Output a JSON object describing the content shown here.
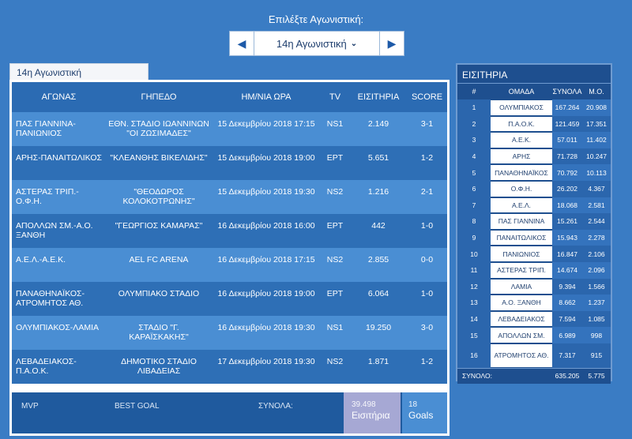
{
  "selector": {
    "label": "Επιλέξτε Αγωνιστική:",
    "value": "14η Αγωνιστική",
    "prev_icon": "◀",
    "next_icon": "▶"
  },
  "matches": {
    "tab_label": "14η Αγωνιστική",
    "headers": [
      "ΑΓΩΝΑΣ",
      "ΓΗΠΕΔΟ",
      "ΗΜ/ΝΙΑ ΩΡΑ",
      "TV",
      "ΕΙΣΙΤΗΡΙΑ",
      "SCORE"
    ],
    "rows": [
      {
        "match": "ΠΑΣ ΓΙΑΝΝΙΝΑ-ΠΑΝΙΩΝΙΟΣ",
        "stadium": "ΕΘΝ. ΣΤΑΔΙΟ ΙΩΑΝΝΙΝΩΝ \"ΟΙ ΖΩΣΙΜΑΔΕΣ\"",
        "date": "15 Δεκεμβρίου 2018 17:15",
        "tv": "NS1",
        "tickets": "2.149",
        "score": "3-1"
      },
      {
        "match": "ΑΡΗΣ-ΠΑΝΑΙΤΩΛΙΚΟΣ",
        "stadium": "\"ΚΛΕΑΝΘΗΣ ΒΙΚΕΛΙΔΗΣ\"",
        "date": "15 Δεκεμβρίου 2018 19:00",
        "tv": "ΕΡΤ",
        "tickets": "5.651",
        "score": "1-2"
      },
      {
        "match": "ΑΣΤΕΡΑΣ ΤΡΙΠ.-Ο.Φ.Η.",
        "stadium": "\"ΘΕΟΔΩΡΟΣ ΚΟΛΟΚΟΤΡΩΝΗΣ\"",
        "date": "15 Δεκεμβρίου 2018 19:30",
        "tv": "NS2",
        "tickets": "1.216",
        "score": "2-1"
      },
      {
        "match": "ΑΠΟΛΛΩΝ ΣΜ.-Α.Ο. ΞΑΝΘΗ",
        "stadium": "\"ΓΕΩΡΓΙΟΣ ΚΑΜΑΡΑΣ\"",
        "date": "16 Δεκεμβρίου 2018 16:00",
        "tv": "ΕΡΤ",
        "tickets": "442",
        "score": "1-0"
      },
      {
        "match": "Α.Ε.Λ.-Α.Ε.Κ.",
        "stadium": "AEL FC ARENA",
        "date": "16 Δεκεμβρίου 2018 17:15",
        "tv": "NS2",
        "tickets": "2.855",
        "score": "0-0"
      },
      {
        "match": "ΠΑΝΑΘΗΝΑΪΚΟΣ-ΑΤΡΟΜΗΤΟΣ ΑΘ.",
        "stadium": "ΟΛΥΜΠΙΑΚΟ ΣΤΑΔΙΟ",
        "date": "16 Δεκεμβρίου 2018 19:00",
        "tv": "ΕΡΤ",
        "tickets": "6.064",
        "score": "1-0"
      },
      {
        "match": "ΟΛΥΜΠΙΑΚΟΣ-ΛΑΜΙΑ",
        "stadium": "ΣΤΑΔΙΟ \"Γ. ΚΑΡΑΪΣΚΑΚΗΣ\"",
        "date": "16 Δεκεμβρίου 2018 19:30",
        "tv": "NS1",
        "tickets": "19.250",
        "score": "3-0"
      },
      {
        "match": "ΛΕΒΑΔΕΙΑΚΟΣ-Π.Α.Ο.Κ.",
        "stadium": "ΔΗΜΟΤΙΚΟ ΣΤΑΔΙΟ ΛΙΒΑΔΕΙΑΣ",
        "date": "17 Δεκεμβρίου 2018 19:30",
        "tv": "NS2",
        "tickets": "1.871",
        "score": "1-2"
      }
    ],
    "footer": {
      "mvp": "MVP",
      "best_goal": "BEST GOAL",
      "total_label": "ΣΥΝΟΛΑ:",
      "tickets_value": "39.498",
      "tickets_label": "Εισιτήρια",
      "goals_value": "18",
      "goals_label": "Goals"
    }
  },
  "tickets": {
    "title": "ΕΙΣΙΤΗΡΙΑ",
    "headers": [
      "#",
      "ΟΜΑΔΑ",
      "ΣΥΝΟΛΑ",
      "Μ.Ο."
    ],
    "rows": [
      {
        "rank": "1",
        "team": "ΟΛΥΜΠΙΑΚΟΣ",
        "total": "167.264",
        "avg": "20.908"
      },
      {
        "rank": "2",
        "team": "Π.Α.Ο.Κ.",
        "total": "121.459",
        "avg": "17.351"
      },
      {
        "rank": "3",
        "team": "Α.Ε.Κ.",
        "total": "57.011",
        "avg": "11.402"
      },
      {
        "rank": "4",
        "team": "ΑΡΗΣ",
        "total": "71.728",
        "avg": "10.247"
      },
      {
        "rank": "5",
        "team": "ΠΑΝΑΘΗΝΑΪΚΟΣ",
        "total": "70.792",
        "avg": "10.113"
      },
      {
        "rank": "6",
        "team": "Ο.Φ.Η.",
        "total": "26.202",
        "avg": "4.367"
      },
      {
        "rank": "7",
        "team": "Α.Ε.Λ.",
        "total": "18.068",
        "avg": "2.581"
      },
      {
        "rank": "8",
        "team": "ΠΑΣ ΓΙΑΝΝΙΝΑ",
        "total": "15.261",
        "avg": "2.544"
      },
      {
        "rank": "9",
        "team": "ΠΑΝΑΙΤΩΛΙΚΟΣ",
        "total": "15.943",
        "avg": "2.278"
      },
      {
        "rank": "10",
        "team": "ΠΑΝΙΩΝΙΟΣ",
        "total": "16.847",
        "avg": "2.106"
      },
      {
        "rank": "11",
        "team": "ΑΣΤΕΡΑΣ ΤΡΙΠ.",
        "total": "14.674",
        "avg": "2.096"
      },
      {
        "rank": "12",
        "team": "ΛΑΜΙΑ",
        "total": "9.394",
        "avg": "1.566"
      },
      {
        "rank": "13",
        "team": "Α.Ο. ΞΑΝΘΗ",
        "total": "8.662",
        "avg": "1.237"
      },
      {
        "rank": "14",
        "team": "ΛΕΒΑΔΕΙΑΚΟΣ",
        "total": "7.594",
        "avg": "1.085"
      },
      {
        "rank": "15",
        "team": "ΑΠΟΛΛΩΝ ΣΜ.",
        "total": "6.989",
        "avg": "998"
      },
      {
        "rank": "16",
        "team": "ΑΤΡΟΜΗΤΟΣ ΑΘ.",
        "total": "7.317",
        "avg": "915"
      }
    ],
    "footer": {
      "label": "ΣΥΝΟΛΟ:",
      "total": "635.205",
      "avg": "5.775"
    }
  }
}
